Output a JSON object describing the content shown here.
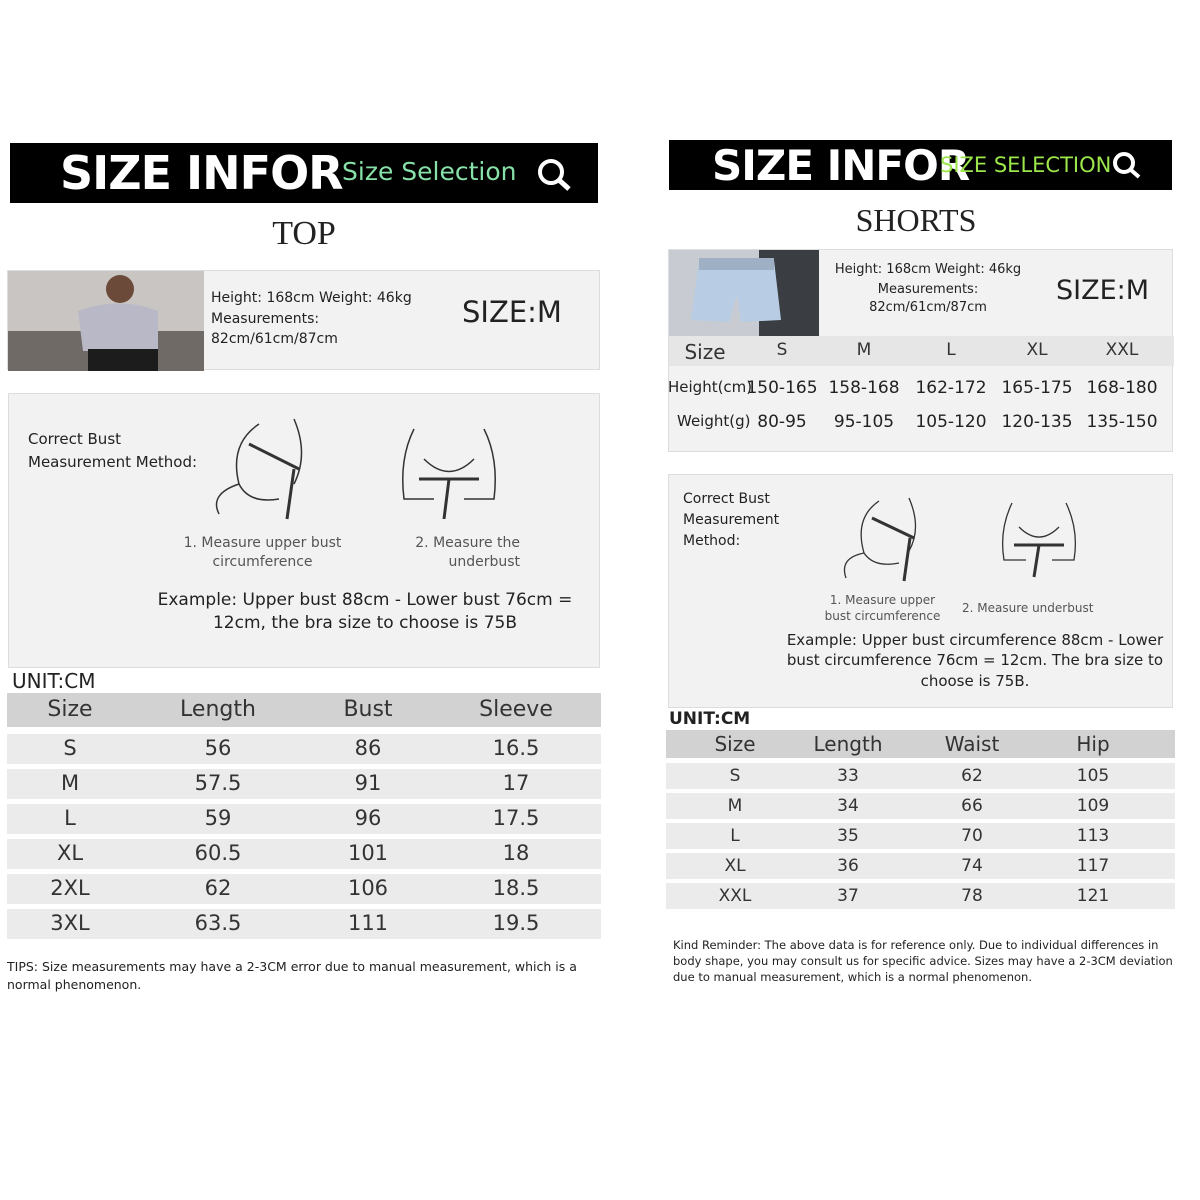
{
  "left": {
    "banner": {
      "title": "SIZE INFOR",
      "subtitle": "Size Selection"
    },
    "heading": "TOP",
    "model": {
      "stats": "Height: 168cm Weight: 46kg",
      "measurements_label": "Measurements:",
      "measurements": "82cm/61cm/87cm",
      "size": "SIZE:M"
    },
    "method": {
      "title": "Correct Bust Measurement Method:",
      "steps": [
        "1. Measure upper bust circumference",
        "2. Measure the underbust"
      ],
      "example": "Example: Upper bust 88cm - Lower bust 76cm = 12cm, the bra size to choose is 75B"
    },
    "unit": "UNIT:CM",
    "table": {
      "header": [
        "Size",
        "Length",
        "Bust",
        "Sleeve"
      ],
      "rows": [
        [
          "S",
          "56",
          "86",
          "16.5"
        ],
        [
          "M",
          "57.5",
          "91",
          "17"
        ],
        [
          "L",
          "59",
          "96",
          "17.5"
        ],
        [
          "XL",
          "60.5",
          "101",
          "18"
        ],
        [
          "2XL",
          "62",
          "106",
          "18.5"
        ],
        [
          "3XL",
          "63.5",
          "111",
          "19.5"
        ]
      ]
    },
    "tips": "TIPS: Size measurements may have a 2-3CM error due to manual measurement, which is a normal phenomenon."
  },
  "right": {
    "banner": {
      "title": "SIZE INFOR",
      "subtitle": "SIZE SELECTION"
    },
    "heading": "SHORTS",
    "model": {
      "stats": "Height: 168cm Weight: 46kg",
      "measurements_label": "Measurements:",
      "measurements": "82cm/61cm/87cm",
      "size": "SIZE:M"
    },
    "size_chart": {
      "header": [
        "Size",
        "S",
        "M",
        "L",
        "XL",
        "XXL"
      ],
      "rows": [
        [
          "Height(cm)",
          "150-165",
          "158-168",
          "162-172",
          "165-175",
          "168-180"
        ],
        [
          "Weight(g)",
          "80-95",
          "95-105",
          "105-120",
          "120-135",
          "135-150"
        ]
      ]
    },
    "method": {
      "title": "Correct Bust Measurement Method:",
      "steps": [
        "1. Measure upper bust circumference",
        "2. Measure underbust"
      ],
      "example": "Example: Upper bust circumference 88cm - Lower bust circumference 76cm = 12cm. The bra size to choose is 75B."
    },
    "unit": "UNIT:CM",
    "table": {
      "header": [
        "Size",
        "Length",
        "Waist",
        "Hip"
      ],
      "rows": [
        [
          "S",
          "33",
          "62",
          "105"
        ],
        [
          "M",
          "34",
          "66",
          "109"
        ],
        [
          "L",
          "35",
          "70",
          "113"
        ],
        [
          "XL",
          "36",
          "74",
          "117"
        ],
        [
          "XXL",
          "37",
          "78",
          "121"
        ]
      ]
    },
    "reminder": "Kind Reminder: The above data is for reference only. Due to individual differences in body shape, you may consult us  for specific advice. Sizes may have a 2-3CM deviation due to manual measurement, which is a normal phenomenon."
  }
}
